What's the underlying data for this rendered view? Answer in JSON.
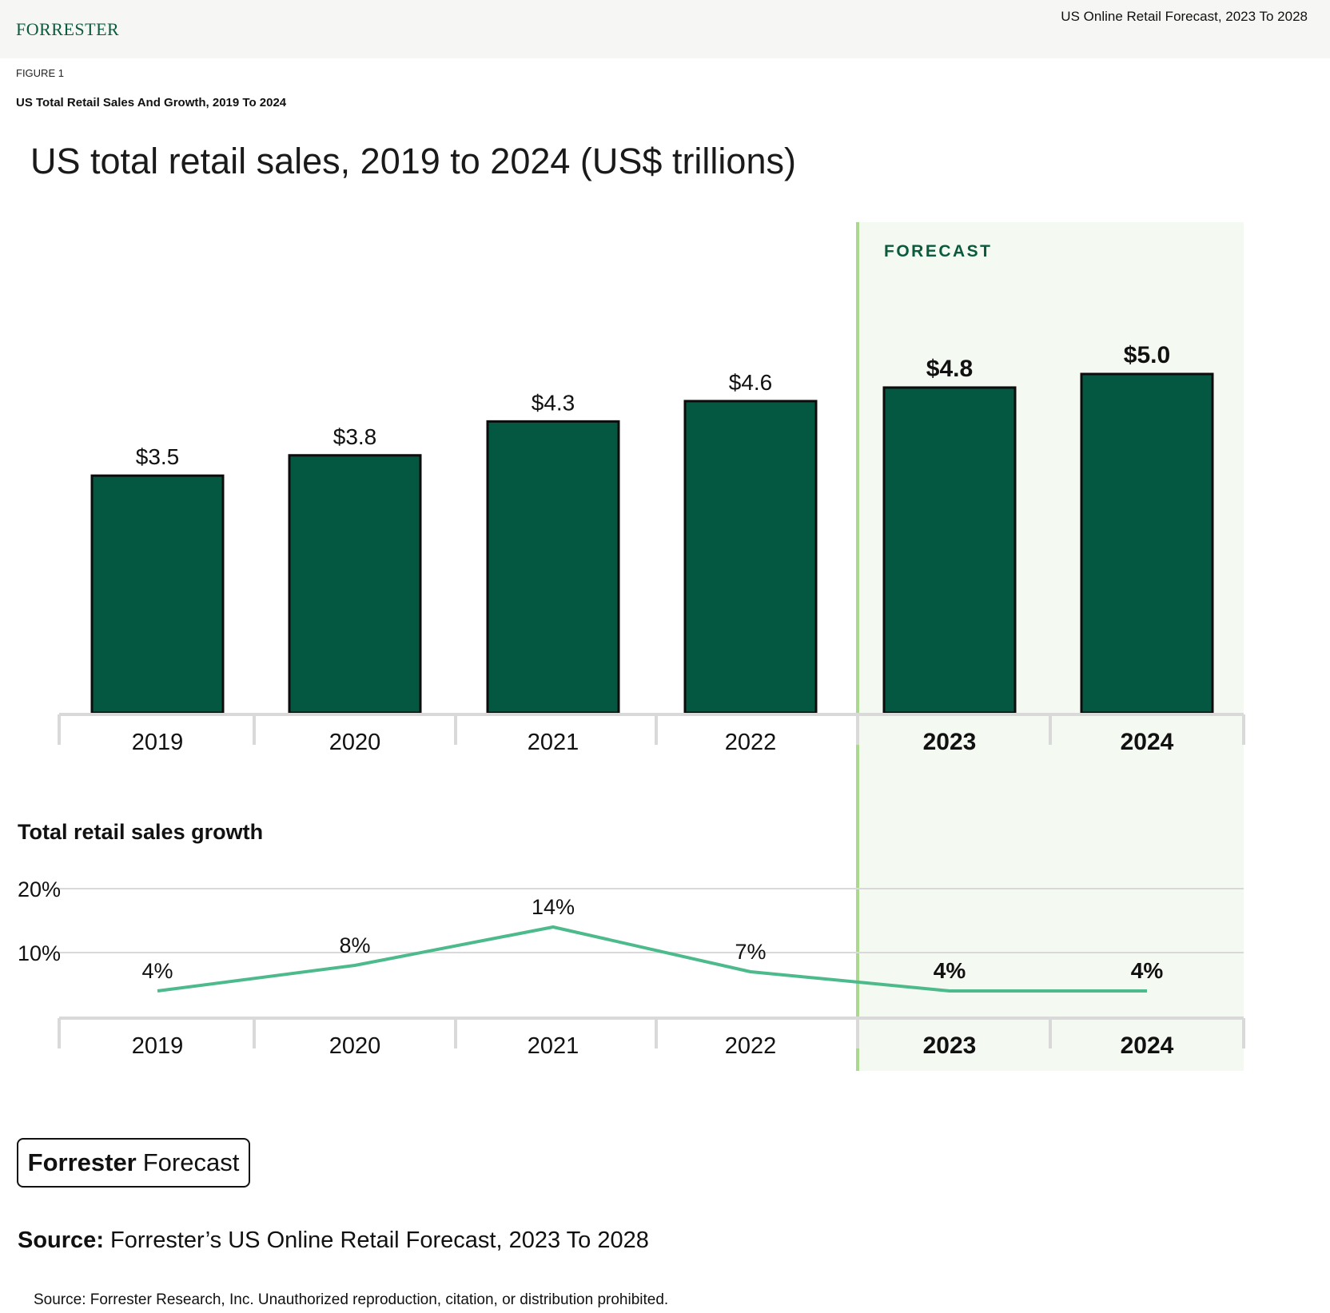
{
  "header": {
    "logo": "FORRESTER",
    "report_title": "US Online Retail Forecast, 2023 To 2028"
  },
  "figure": {
    "label": "FIGURE 1",
    "title": "US Total Retail Sales And Growth, 2019 To 2024"
  },
  "forecast_label": "FORECAST",
  "growth_title": "Total retail sales growth",
  "badge": {
    "bold": "Forrester",
    "rest": "Forecast"
  },
  "source": {
    "label": "Source:",
    "text": "Forrester’s US Online Retail Forecast, 2023 To 2028"
  },
  "footer": "Source: Forrester Research, Inc. Unauthorized reproduction, citation, or distribution prohibited.",
  "colors": {
    "bar": "#045741",
    "line": "#4cba8b",
    "forecast_panel": "#f4f9f2",
    "forecast_divider": "#aad88d",
    "forecast_text": "#0a5a3e"
  },
  "chart_data": [
    {
      "type": "bar",
      "title": "US total retail sales, 2019 to 2024 (US$ trillions)",
      "categories": [
        "2019",
        "2020",
        "2021",
        "2022",
        "2023",
        "2024"
      ],
      "values": [
        3.5,
        3.8,
        4.3,
        4.6,
        4.8,
        5.0
      ],
      "value_labels": [
        "$3.5",
        "$3.8",
        "$4.3",
        "$4.6",
        "$4.8",
        "$5.0"
      ],
      "forecast": [
        false,
        false,
        false,
        false,
        true,
        true
      ],
      "ylim": [
        0,
        5.0
      ],
      "grid": false
    },
    {
      "type": "line",
      "title": "Total retail sales growth",
      "categories": [
        "2019",
        "2020",
        "2021",
        "2022",
        "2023",
        "2024"
      ],
      "values": [
        4,
        8,
        14,
        7,
        4,
        4
      ],
      "value_labels": [
        "4%",
        "8%",
        "14%",
        "7%",
        "4%",
        "4%"
      ],
      "forecast": [
        false,
        false,
        false,
        false,
        true,
        true
      ],
      "yticks": [
        "20%",
        "10%"
      ],
      "ytick_values": [
        20,
        10
      ],
      "ylim": [
        0,
        20
      ],
      "grid": true
    }
  ]
}
